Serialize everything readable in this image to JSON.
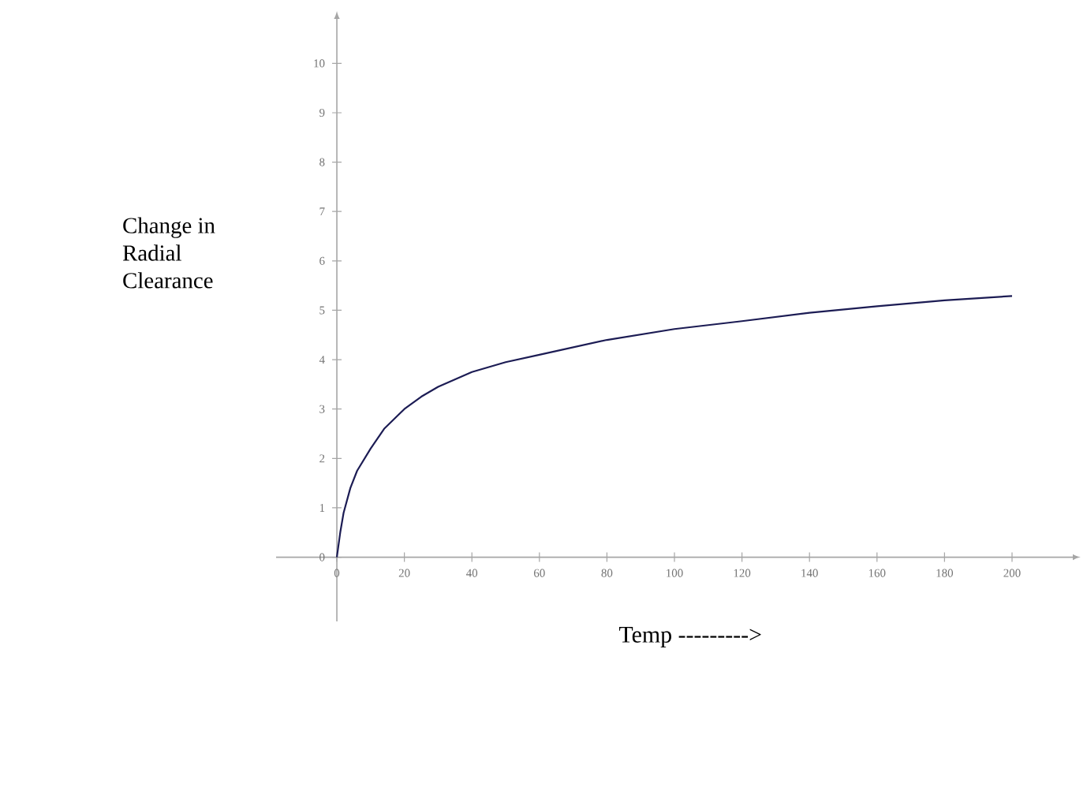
{
  "chart_data": {
    "type": "line",
    "xlabel": "Temp  --------->",
    "ylabel": "Change in Radial Clearance",
    "xlim": [
      -18,
      218
    ],
    "ylim": [
      -1.3,
      10.9
    ],
    "xticks": [
      0,
      20,
      40,
      60,
      80,
      100,
      120,
      140,
      160,
      180,
      200
    ],
    "yticks": [
      0,
      1,
      2,
      3,
      4,
      5,
      6,
      7,
      8,
      9,
      10
    ],
    "grid": false,
    "marker": "none",
    "line_style": "solid",
    "series": [
      {
        "color": "#1c1c54",
        "x": [
          0,
          1,
          2,
          4,
          6,
          10,
          14,
          20,
          25,
          30,
          40,
          50,
          60,
          80,
          100,
          120,
          140,
          160,
          180,
          200
        ],
        "values": [
          0,
          0.5,
          0.9,
          1.4,
          1.75,
          2.2,
          2.6,
          3.0,
          3.25,
          3.45,
          3.75,
          3.95,
          4.1,
          4.4,
          4.62,
          4.78,
          4.95,
          5.08,
          5.2,
          5.29
        ]
      }
    ]
  }
}
